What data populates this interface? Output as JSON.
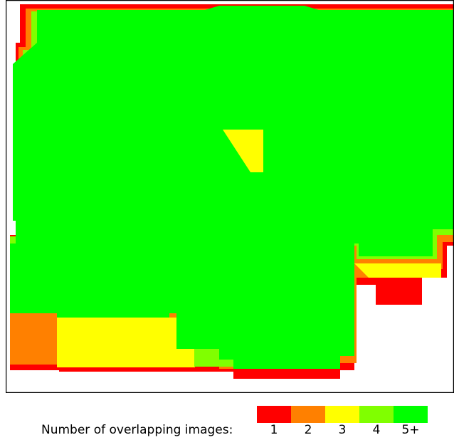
{
  "chart_data": {
    "type": "heatmap",
    "title": "",
    "colorbar": {
      "label": "Number of overlapping images:",
      "levels": [
        {
          "label": "1",
          "color": "#ff0000"
        },
        {
          "label": "2",
          "color": "#ff8000"
        },
        {
          "label": "3",
          "color": "#ffff00"
        },
        {
          "label": "4",
          "color": "#80ff00"
        },
        {
          "label": "5+",
          "color": "#00ff00"
        }
      ]
    },
    "dominant_level": "5+",
    "frame_color": "#000000",
    "background": "#ffffff"
  }
}
